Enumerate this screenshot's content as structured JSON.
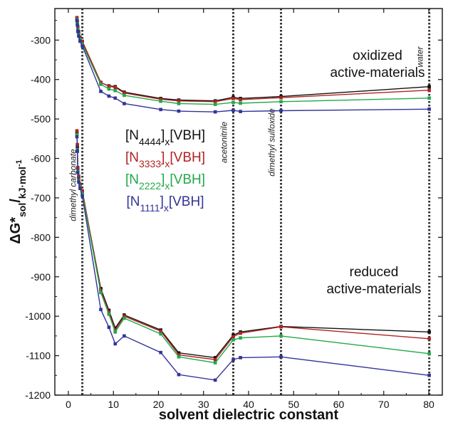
{
  "chart_data": {
    "type": "line",
    "xlabel": "solvent dielectric constant",
    "ylabel": "ΔG*sol/kJ·mol-1",
    "ylabel_parts": {
      "main": "ΔG*",
      "sub": "sol",
      "slash": "/",
      "unit": "kJ·mol",
      "sup": "-1"
    },
    "xlim": [
      -3,
      83
    ],
    "ylim": [
      -1200,
      -220
    ],
    "x_ticks": [
      0,
      10,
      20,
      30,
      40,
      50,
      60,
      70,
      80
    ],
    "y_ticks": [
      -300,
      -400,
      -500,
      -600,
      -700,
      -800,
      -900,
      -1000,
      -1100,
      -1200
    ],
    "grid": false,
    "vertical_lines": [
      {
        "x": 3.1,
        "label": "dimethyl carbonate"
      },
      {
        "x": 36.6,
        "label": "acetonitrile"
      },
      {
        "x": 47.2,
        "label": "dimethyl sulfoxide"
      },
      {
        "x": 80.1,
        "label": "water"
      }
    ],
    "annotations": [
      {
        "group": "oxidized",
        "lines": [
          "oxidized",
          "active-materials"
        ]
      },
      {
        "group": "reduced",
        "lines": [
          "reduced",
          "active-materials"
        ]
      }
    ],
    "legend": [
      {
        "pre": "[N",
        "sub": "4444",
        "post": "]",
        "sub2": "x",
        "tail": "[VBH]",
        "color": "#111111"
      },
      {
        "pre": "[N",
        "sub": "3333",
        "post": "]",
        "sub2": "x",
        "tail": "[VBH]",
        "color": "#b22222"
      },
      {
        "pre": "[N",
        "sub": "2222",
        "post": "]",
        "sub2": "x",
        "tail": "[VBH]",
        "color": "#22a84a"
      },
      {
        "pre": "[N",
        "sub": "1111",
        "post": "]",
        "sub2": "x",
        "tail": "[VBH]",
        "color": "#333399"
      }
    ],
    "x": [
      1.9,
      2.0,
      2.1,
      2.3,
      2.6,
      3.1,
      7.2,
      9.0,
      10.4,
      12.4,
      20.5,
      24.5,
      32.6,
      36.6,
      38.2,
      47.2,
      80.1
    ],
    "series": [
      {
        "group": "oxidized",
        "color": "#111111",
        "values": [
          -245,
          -255,
          -268,
          -280,
          -295,
          -305,
          -408,
          -416,
          -418,
          -432,
          -448,
          -452,
          -454,
          -445,
          -448,
          -443,
          -418
        ]
      },
      {
        "group": "oxidized",
        "color": "#b22222",
        "values": [
          -243,
          -253,
          -266,
          -278,
          -293,
          -303,
          -407,
          -417,
          -420,
          -434,
          -450,
          -454,
          -456,
          -448,
          -451,
          -446,
          -427
        ]
      },
      {
        "group": "oxidized",
        "color": "#22a84a",
        "values": [
          -248,
          -258,
          -272,
          -285,
          -298,
          -310,
          -412,
          -424,
          -428,
          -440,
          -455,
          -461,
          -463,
          -458,
          -460,
          -456,
          -447
        ]
      },
      {
        "group": "oxidized",
        "color": "#333399",
        "values": [
          -250,
          -262,
          -278,
          -290,
          -303,
          -315,
          -430,
          -442,
          -447,
          -461,
          -476,
          -480,
          -482,
          -478,
          -481,
          -479,
          -475
        ]
      },
      {
        "group": "reduced",
        "color": "#111111",
        "values": [
          -535,
          -570,
          -628,
          -650,
          -668,
          -685,
          -930,
          -985,
          -1030,
          -997,
          -1035,
          -1093,
          -1105,
          -1048,
          -1040,
          -1026,
          -1040
        ]
      },
      {
        "group": "reduced",
        "color": "#b22222",
        "values": [
          -530,
          -565,
          -623,
          -645,
          -665,
          -682,
          -935,
          -990,
          -1035,
          -1000,
          -1038,
          -1098,
          -1110,
          -1052,
          -1043,
          -1027,
          -1057
        ]
      },
      {
        "group": "reduced",
        "color": "#22a84a",
        "values": [
          -540,
          -578,
          -632,
          -655,
          -672,
          -690,
          -940,
          -995,
          -1040,
          -1005,
          -1045,
          -1103,
          -1118,
          -1060,
          -1055,
          -1050,
          -1095
        ]
      },
      {
        "group": "reduced",
        "color": "#333399",
        "values": [
          -545,
          -582,
          -636,
          -660,
          -676,
          -695,
          -983,
          -1028,
          -1070,
          -1050,
          -1092,
          -1148,
          -1162,
          -1110,
          -1105,
          -1103,
          -1150
        ]
      }
    ]
  }
}
